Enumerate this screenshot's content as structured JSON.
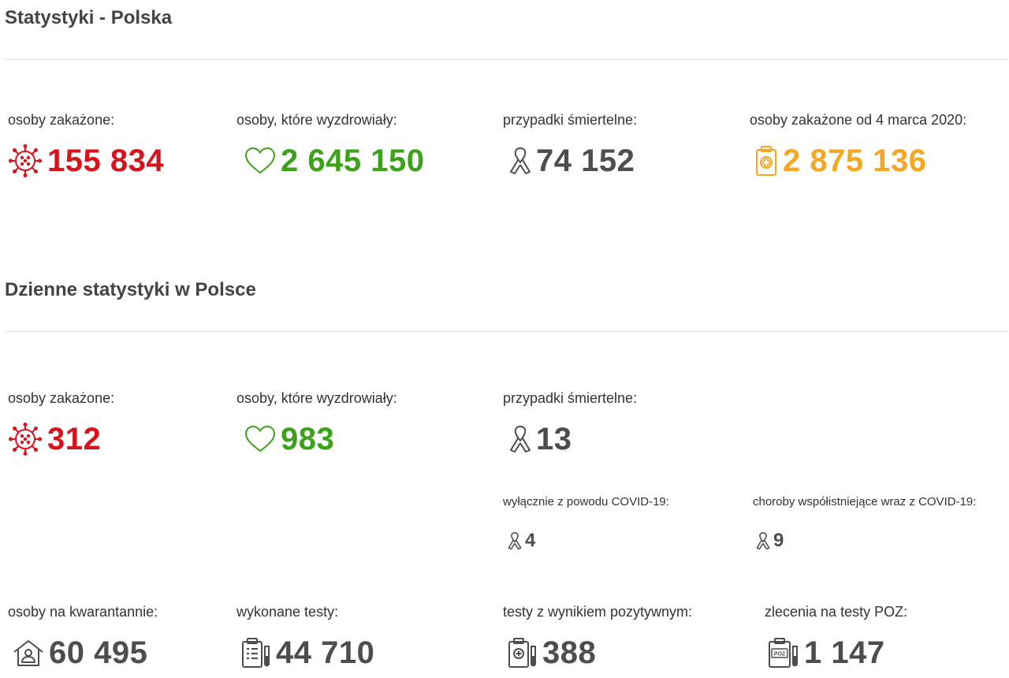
{
  "colors": {
    "infected": "#d6141c",
    "recovered": "#3ca21a",
    "deaths": "#4d4d4d",
    "total": "#f5a623"
  },
  "poland": {
    "title": "Statystyki - Polska",
    "infected": {
      "label": "osoby zakażone:",
      "value": "155 834",
      "icon": "virus-icon"
    },
    "recovered": {
      "label": "osoby, które wyzdrowiały:",
      "value": "2 645 150",
      "icon": "heart-icon"
    },
    "deaths": {
      "label": "przypadki śmiertelne:",
      "value": "74 152",
      "icon": "ribbon-icon"
    },
    "total": {
      "label": "osoby zakażone od 4 marca 2020:",
      "value": "2 875 136",
      "icon": "clipboard-medical-icon"
    }
  },
  "daily": {
    "title": "Dzienne statystyki w Polsce",
    "infected": {
      "label": "osoby zakażone:",
      "value": "312",
      "icon": "virus-icon"
    },
    "recovered": {
      "label": "osoby, które wyzdrowiały:",
      "value": "983",
      "icon": "heart-icon"
    },
    "deaths": {
      "label": "przypadki śmiertelne:",
      "value": "13",
      "icon": "ribbon-icon"
    },
    "deaths_covid_only": {
      "label": "wyłącznie z powodu COVID-19:",
      "value": "4",
      "icon": "ribbon-icon"
    },
    "deaths_comorbid": {
      "label": "choroby współistniejące wraz z COVID-19:",
      "value": "9",
      "icon": "ribbon-icon"
    },
    "quarantine": {
      "label": "osoby na kwarantannie:",
      "value": "60 495",
      "icon": "house-person-icon"
    },
    "tests": {
      "label": "wykonane testy:",
      "value": "44 710",
      "icon": "test-clipboard-icon"
    },
    "positive_tests": {
      "label": "testy z wynikiem pozytywnym:",
      "value": "388",
      "icon": "positive-test-icon"
    },
    "poz_orders": {
      "label": "zlecenia na testy POZ:",
      "value": "1 147",
      "icon": "poz-test-icon",
      "badge": "POZ"
    }
  }
}
